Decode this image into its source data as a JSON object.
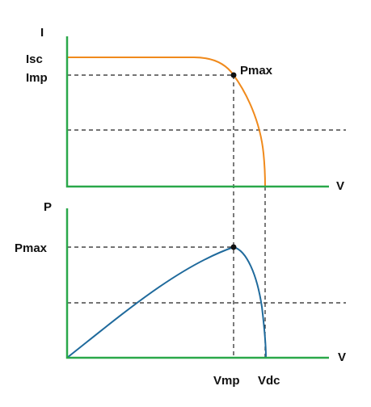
{
  "iv_curve": {
    "y_axis_label": "I",
    "isc_label": "Isc",
    "imp_label": "Imp",
    "point_label": "Pmax",
    "x_axis_label": "V"
  },
  "pv_curve": {
    "y_axis_label": "P",
    "pmax_label": "Pmax",
    "x_axis_label": "V",
    "vmp_label": "Vmp",
    "vdc_label": "Vdc"
  }
}
